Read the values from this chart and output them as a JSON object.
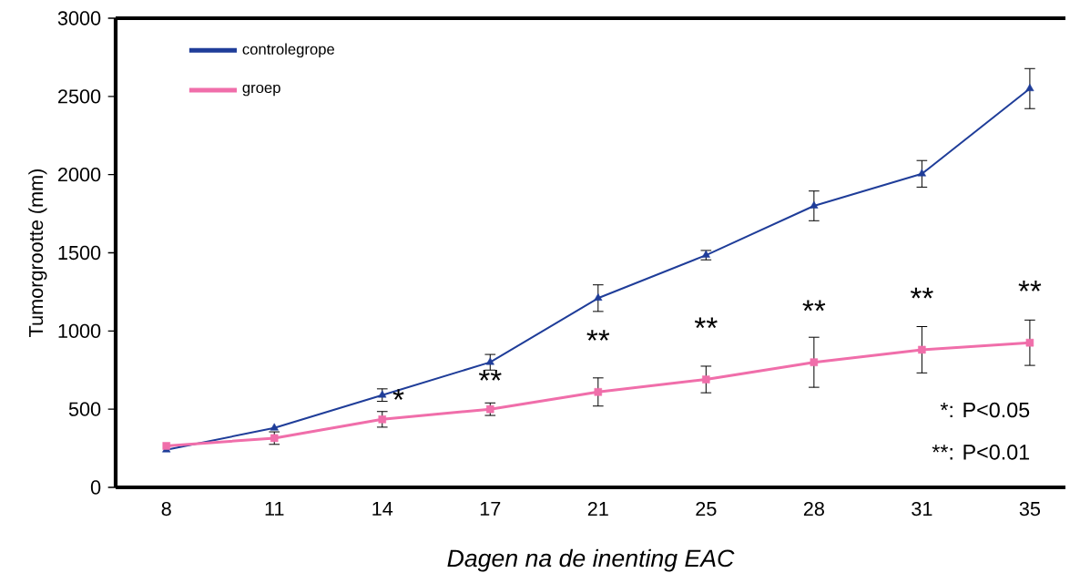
{
  "chart_data": {
    "type": "line",
    "xlabel": "Dagen na de inenting EAC",
    "ylabel": "Tumorgrootte (mm)",
    "categories": [
      "8",
      "11",
      "14",
      "17",
      "21",
      "25",
      "28",
      "31",
      "35"
    ],
    "series": [
      {
        "name": "controlegrope",
        "color": "#1f3d99",
        "marker": "triangle",
        "values": [
          240,
          380,
          590,
          800,
          1210,
          1485,
          1800,
          2005,
          2550
        ],
        "errors": [
          null,
          null,
          40,
          50,
          85,
          30,
          95,
          85,
          128
        ]
      },
      {
        "name": "groep",
        "color": "#f06eaa",
        "marker": "square",
        "values": [
          265,
          315,
          435,
          500,
          610,
          690,
          800,
          880,
          925
        ],
        "errors": [
          null,
          40,
          50,
          40,
          90,
          85,
          160,
          148,
          145
        ]
      }
    ],
    "ylim": [
      0,
      3000
    ],
    "yticks": [
      0,
      500,
      1000,
      1500,
      2000,
      2500,
      3000
    ],
    "legend": "top left",
    "grid": false,
    "annotations": [
      {
        "text": "*",
        "x": "14",
        "y": 435
      },
      {
        "text": "**",
        "x": "17",
        "y": 500
      },
      {
        "text": "**",
        "x": "21",
        "y": 610
      },
      {
        "text": "**",
        "x": "25",
        "y": 690
      },
      {
        "text": "**",
        "x": "28",
        "y": 800
      },
      {
        "text": "**",
        "x": "31",
        "y": 880
      },
      {
        "text": "**",
        "x": "35",
        "y": 925
      },
      "*: P<0.05",
      "**: P<0.01"
    ]
  }
}
